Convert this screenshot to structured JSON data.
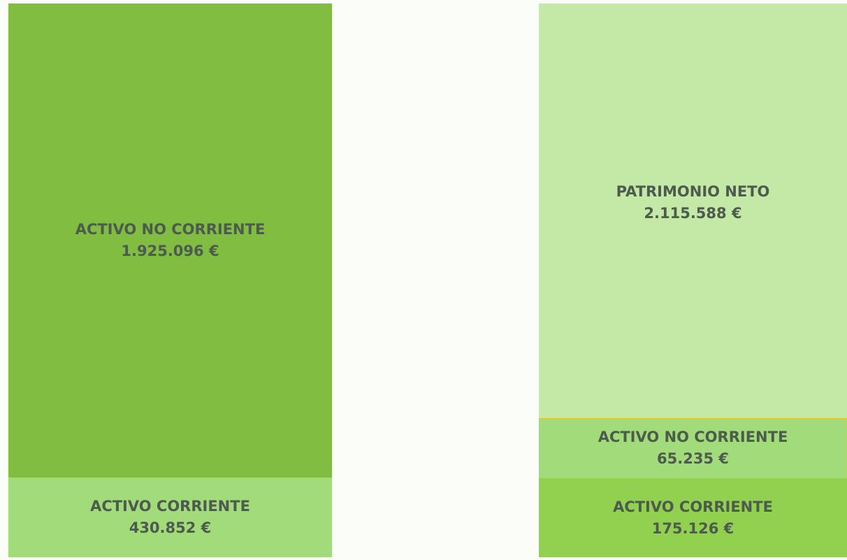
{
  "assets": [
    {
      "name": "ACTIVO NO CORRIENTE",
      "amount": "1.925.096 €"
    },
    {
      "name": "ACTIVO CORRIENTE",
      "amount": "430.852 €"
    }
  ],
  "liabilities": [
    {
      "name": "PATRIMONIO NETO",
      "amount": "2.115.588 €"
    },
    {
      "name": "ACTIVO NO CORRIENTE",
      "amount": "65.235 €"
    },
    {
      "name": "ACTIVO CORRIENTE",
      "amount": "175.126 €"
    }
  ]
}
